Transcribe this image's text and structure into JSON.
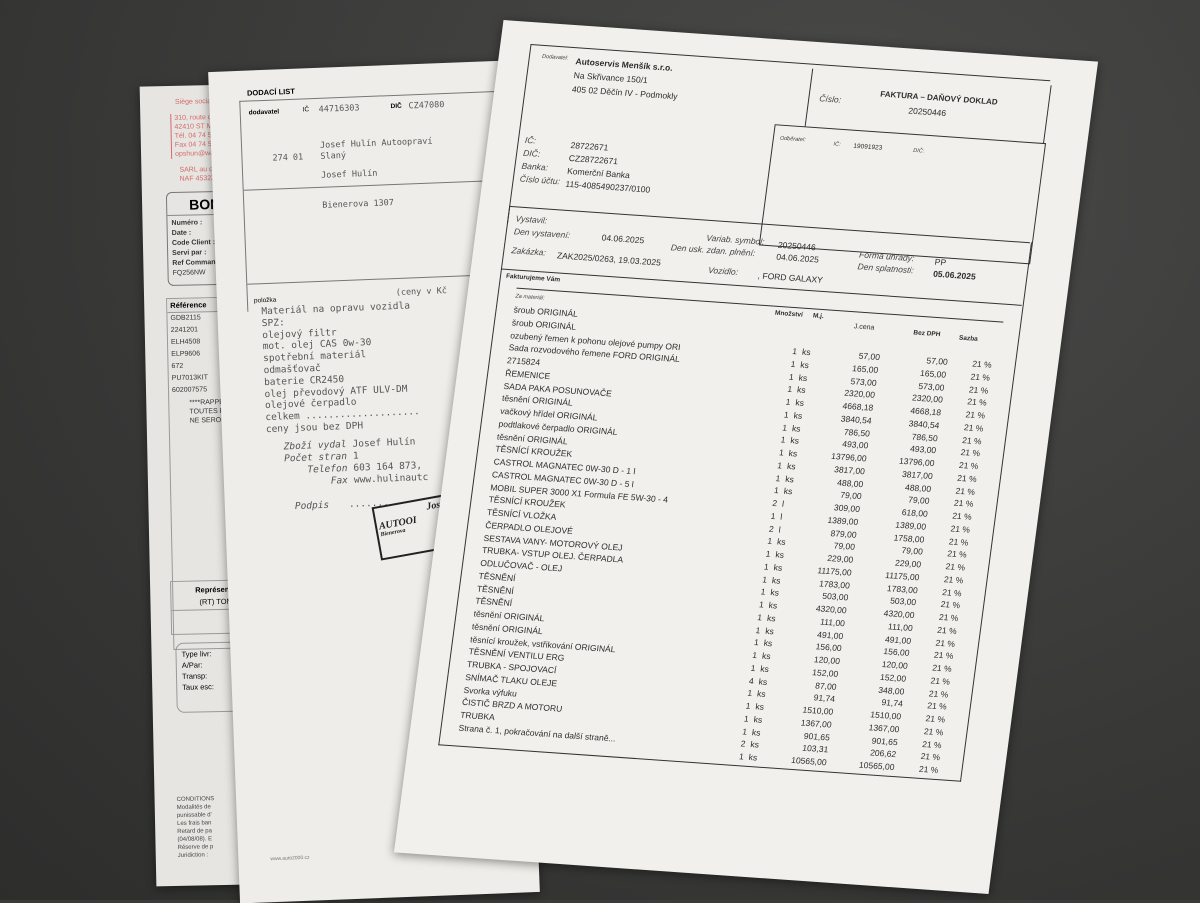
{
  "bon": {
    "siege": "Siège social",
    "address": [
      "310, route de Verl",
      "42410 ST MICHEL",
      "Tél. 04 74 58 93 83",
      "Fax 04 74 58 95 46",
      "opshun@wanado"
    ],
    "sarl": [
      "SARL au capital d",
      "NAF 4532Z - TVA"
    ],
    "title": "BON DE",
    "fields": [
      {
        "k": "Numéro :",
        "v": "10"
      },
      {
        "k": "Date :",
        "v": "22"
      },
      {
        "k": "Code Client :",
        "v": "41"
      },
      {
        "k": "Servi par :",
        "v": "(F"
      },
      {
        "k": "Ref Commande :",
        "v": ""
      }
    ],
    "ref_commande": "FQ256NW",
    "ref_header": "Référence",
    "refs": [
      "GDB2115",
      "2241201",
      "ELH4508",
      "ELP9606",
      "672",
      "PU7013KIT",
      "602007575"
    ],
    "rappel": [
      "****RAPPEL*",
      "TOUTES PIE",
      "NE SERONT"
    ],
    "rep_label": "Représent",
    "rep_value": "(RT) TOM",
    "type_fields": [
      "Type livr:",
      "A/Par:",
      "Transp:",
      "Taux esc:"
    ],
    "conditions": [
      "CONDITIONS",
      "Modalités de",
      "punissable d'",
      "Les frais ban",
      "Retard de pa",
      "(04/08/08). E",
      "Réserve de p",
      "Juridiction :"
    ]
  },
  "dodaci": {
    "title": "DODACÍ LIST",
    "dodavatel_label": "dodavatel",
    "ic_label": "IČ",
    "ic": "44716303",
    "dic_label": "DIČ",
    "dic": "CZ47080",
    "address": [
      "Josef Hulín Autoopraví",
      "Josef Hulín",
      "Bienerova 1307"
    ],
    "psc": "274 01",
    "city": "Slaný",
    "polozka_label": "položka",
    "ceny_label": "(ceny v Kč",
    "items": [
      "Materiál na opravu vozidla",
      "SPZ:",
      "olejový filtr",
      "mot. olej CAS 0w-30",
      "spotřební materiál",
      "odmašťovač",
      "baterie CR2450",
      "olej převodový ATF ULV-DM",
      "olejové čerpadlo",
      "celkem ....................",
      "ceny jsou bez DPH"
    ],
    "footer": [
      {
        "k": "Zboží vydal",
        "v": "Josef Hulín"
      },
      {
        "k": "Počet stran",
        "v": "1"
      },
      {
        "k": "Telefon",
        "v": "603 164 873,"
      },
      {
        "k": "Fax",
        "v": "www.hulinautc"
      }
    ],
    "podpis_label": "Podpis",
    "podpis_dots": "........",
    "stamp_lines": [
      "Jos",
      "AUTOOI",
      "Bienerova"
    ],
    "website": "www.auto2000.cz"
  },
  "invoice": {
    "dodavatel_label": "Dodavatel:",
    "supplier_name": "Autoservis Menšík s.r.o.",
    "supplier_street": "Na Skřivance 150/1",
    "supplier_city": "405 02 Děčín IV - Podmokly",
    "doc_title": "FAKTURA – DAŇOVÝ DOKLAD",
    "cislo_label": "Číslo:",
    "cislo": "20250446",
    "ic_label": "IČ:",
    "ic": "28722671",
    "dic_label": "DIČ:",
    "dic": "CZ28722671",
    "banka_label": "Banka:",
    "banka": "Komerční Banka",
    "ucet_label": "Číslo účtu:",
    "ucet": "115-4085490237/0100",
    "odberatel_label": "Odběratel:",
    "odb_ic_label": "IČ:",
    "odb_ic": "19091923",
    "odb_dic_label": "DIČ:",
    "vystavil_label": "Vystavil:",
    "den_vystaveni_label": "Den vystavení:",
    "den_vystaveni": "04.06.2025",
    "variab_label": "Variab. symbol:",
    "variab": "20250446",
    "duzp_label": "Den usk. zdan. plnění:",
    "duzp": "04.06.2025",
    "forma_label": "Forma úhrady:",
    "forma": "PP",
    "splatnost_label": "Den splatnosti:",
    "splatnost": "05.06.2025",
    "zakazka_label": "Zakázka:",
    "zakazka": "ZAK2025/0263, 19.03.2025",
    "vozidlo_label": "Vozidlo:",
    "vozidlo": ", FORD GALAXY",
    "fakturujeme": "Fakturujeme Vám",
    "za_material": "Za materiál:",
    "columns": {
      "mnozstvi": "Množství",
      "mj": "M.j.",
      "jcena": "J.cena",
      "bezdph": "Bez DPH",
      "sazba": "Sazba"
    },
    "descriptions": [
      "šroub ORIGINÁL",
      "šroub ORIGINÁL",
      "ozubený řemen k pohonu olejové pumpy ORI",
      "Sada rozvodového řemene FORD ORIGINÁL",
      "2715824",
      "ŘEMENICE",
      "SADA PAKA POSUNOVAČE",
      "těsnění ORIGINÁL",
      "vačkový hřídel ORIGINÁL",
      "podtlakové čerpadlo ORIGINÁL",
      "těsnění ORIGINÁL",
      "TĚSNÍCÍ KROUŽEK",
      "CASTROL MAGNATEC 0W-30 D - 1 l",
      "CASTROL MAGNATEC 0W-30 D - 5 l",
      "MOBIL SUPER 3000 X1 Formula FE 5W-30 - 4",
      "TĚSNÍCÍ KROUŽEK",
      "TĚSNÍCÍ VLOŽKA",
      "ČERPADLO OLEJOVÉ",
      "SESTAVA VANY- MOTOROVÝ OLEJ",
      "TRUBKA- VSTUP OLEJ. ČERPADLA",
      "ODLUČOVAČ - OLEJ",
      "TĚSNĚNÍ",
      "TĚSNĚNÍ",
      "TĚSNĚNÍ",
      "těsnění ORIGINÁL",
      "těsnění ORIGINÁL",
      "těsnící kroužek, vstřikování ORIGINÁL",
      "TĚSNĚNÍ VENTILU ERG",
      "TRUBKA - SPOJOVACÍ",
      "SNÍMAČ TLAKU OLEJE",
      "Svorka výfuku",
      "ČISTIČ BRZD A MOTORU",
      "TRUBKA",
      "Strana č. 1, pokračování na další straně..."
    ],
    "rows": [
      [
        "1",
        "ks",
        "57,00",
        "57,00",
        "21 %"
      ],
      [
        "1",
        "ks",
        "165,00",
        "165,00",
        "21 %"
      ],
      [
        "1",
        "ks",
        "573,00",
        "573,00",
        "21 %"
      ],
      [
        "1",
        "ks",
        "2320,00",
        "2320,00",
        "21 %"
      ],
      [
        "1",
        "ks",
        "4668,18",
        "4668,18",
        "21 %"
      ],
      [
        "1",
        "ks",
        "3840,54",
        "3840,54",
        "21 %"
      ],
      [
        "1",
        "ks",
        "786,50",
        "786,50",
        "21 %"
      ],
      [
        "1",
        "ks",
        "493,00",
        "493,00",
        "21 %"
      ],
      [
        "1",
        "ks",
        "13796,00",
        "13796,00",
        "21 %"
      ],
      [
        "1",
        "ks",
        "3817,00",
        "3817,00",
        "21 %"
      ],
      [
        "1",
        "ks",
        "488,00",
        "488,00",
        "21 %"
      ],
      [
        "1",
        "ks",
        "79,00",
        "79,00",
        "21 %"
      ],
      [
        "2",
        "l",
        "309,00",
        "618,00",
        "21 %"
      ],
      [
        "1",
        "l",
        "1389,00",
        "1389,00",
        "21 %"
      ],
      [
        "2",
        "l",
        "879,00",
        "1758,00",
        "21 %"
      ],
      [
        "1",
        "ks",
        "79,00",
        "79,00",
        "21 %"
      ],
      [
        "1",
        "ks",
        "229,00",
        "229,00",
        "21 %"
      ],
      [
        "1",
        "ks",
        "11175,00",
        "11175,00",
        "21 %"
      ],
      [
        "1",
        "ks",
        "1783,00",
        "1783,00",
        "21 %"
      ],
      [
        "1",
        "ks",
        "503,00",
        "503,00",
        "21 %"
      ],
      [
        "1",
        "ks",
        "4320,00",
        "4320,00",
        "21 %"
      ],
      [
        "1",
        "ks",
        "111,00",
        "111,00",
        "21 %"
      ],
      [
        "1",
        "ks",
        "491,00",
        "491,00",
        "21 %"
      ],
      [
        "1",
        "ks",
        "156,00",
        "156,00",
        "21 %"
      ],
      [
        "1",
        "ks",
        "120,00",
        "120,00",
        "21 %"
      ],
      [
        "1",
        "ks",
        "152,00",
        "152,00",
        "21 %"
      ],
      [
        "4",
        "ks",
        "87,00",
        "348,00",
        "21 %"
      ],
      [
        "1",
        "ks",
        "91,74",
        "91,74",
        "21 %"
      ],
      [
        "1",
        "ks",
        "1510,00",
        "1510,00",
        "21 %"
      ],
      [
        "1",
        "ks",
        "1367,00",
        "1367,00",
        "21 %"
      ],
      [
        "1",
        "ks",
        "901,65",
        "901,65",
        "21 %"
      ],
      [
        "2",
        "ks",
        "103,31",
        "206,62",
        "21 %"
      ],
      [
        "1",
        "ks",
        "10565,00",
        "10565,00",
        "21 %"
      ]
    ]
  }
}
